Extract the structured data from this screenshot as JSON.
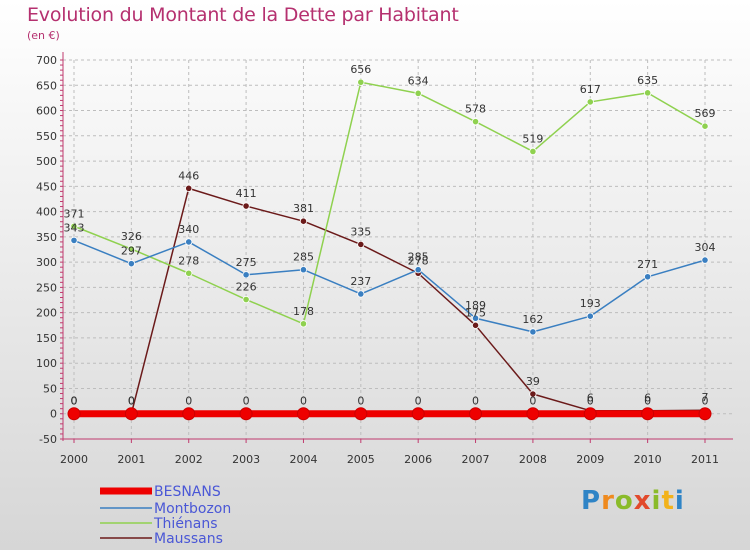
{
  "title": "Evolution du Montant de la Dette par Habitant",
  "subtitle": "(en €)",
  "logo": {
    "letters": [
      "P",
      "r",
      "o",
      "x",
      "i",
      "t",
      "i"
    ],
    "colors": [
      "#2f84c6",
      "#ef8a1e",
      "#8abb2a",
      "#e24a2c",
      "#8abb2a",
      "#f2b21b",
      "#2f84c6"
    ]
  },
  "chart_data": {
    "type": "line",
    "title": "Evolution du Montant de la Dette par Habitant",
    "ylabel": "(en €)",
    "x": [
      "2000",
      "2001",
      "2002",
      "2003",
      "2004",
      "2005",
      "2006",
      "2007",
      "2008",
      "2009",
      "2010",
      "2011"
    ],
    "ylim": [
      -50,
      700
    ],
    "yticks": [
      -50,
      0,
      50,
      100,
      150,
      200,
      250,
      300,
      350,
      400,
      450,
      500,
      550,
      600,
      650,
      700
    ],
    "grid": true,
    "legend": "bottom-left",
    "series": [
      {
        "name": "BESNANS",
        "color": "#ee0000",
        "values": [
          0,
          0,
          0,
          0,
          0,
          0,
          0,
          0,
          0,
          0,
          0,
          0
        ],
        "labels": [
          "0",
          "0",
          "0",
          "0",
          "0",
          "0",
          "0",
          "0",
          "0",
          "0",
          "0",
          "0"
        ]
      },
      {
        "name": "Montbozon",
        "color": "#3a7fc1",
        "values": [
          343,
          297,
          340,
          275,
          285,
          237,
          285,
          189,
          162,
          193,
          271,
          304
        ],
        "labels": [
          "343",
          "297",
          "340",
          "275",
          "285",
          "237",
          "285",
          "189",
          "162",
          "193",
          "271",
          "304"
        ]
      },
      {
        "name": "Thiénans",
        "color": "#8fd14f",
        "values": [
          371,
          326,
          278,
          226,
          178,
          656,
          634,
          578,
          519,
          617,
          635,
          569
        ],
        "labels": [
          "371",
          "326",
          "278",
          "226",
          "178",
          "656",
          "634",
          "578",
          "519",
          "617",
          "635",
          "569"
        ],
        "segments": [
          [
            0,
            4
          ],
          [
            4,
            11
          ]
        ]
      },
      {
        "name": "Maussans",
        "color": "#6b1a1a",
        "values": [
          0,
          0,
          446,
          411,
          381,
          335,
          278,
          175,
          39,
          6,
          6,
          7
        ],
        "labels": [
          "0",
          "0",
          "446",
          "411",
          "381",
          "335",
          "278",
          "175",
          "39",
          "6",
          "6",
          "7"
        ]
      }
    ]
  }
}
